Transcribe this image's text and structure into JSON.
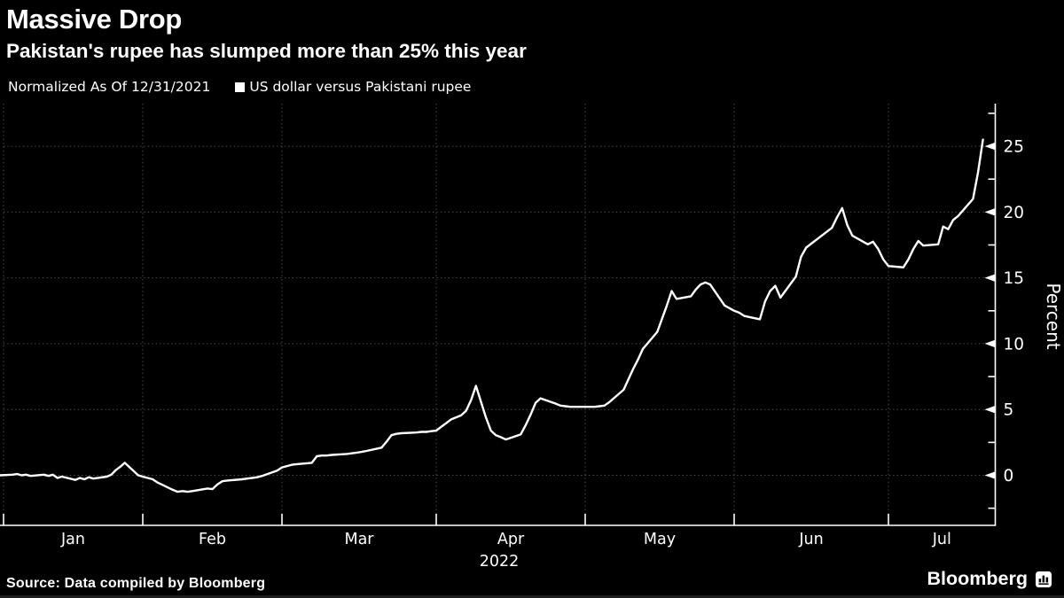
{
  "header": {
    "title": "Massive Drop",
    "subtitle": "Pakistan's rupee has slumped more than 25% this year"
  },
  "legend": {
    "note": "Normalized As Of 12/31/2021",
    "series_label": "US dollar versus Pakistani rupee"
  },
  "footer": {
    "source": "Source: Data compiled by Bloomberg",
    "brand": "Bloomberg"
  },
  "chart_data": {
    "type": "line",
    "title": "Massive Drop",
    "subtitle": "Pakistan's rupee has slumped more than 25% this year",
    "series_name": "US dollar versus Pakistani rupee",
    "normalized_as_of": "12/31/2021",
    "ylabel": "Percent",
    "year_label": "2022",
    "x_tick_labels": [
      "Jan",
      "Feb",
      "Mar",
      "Apr",
      "May",
      "Jun",
      "Jul"
    ],
    "y_ticks": [
      0,
      5,
      10,
      15,
      20,
      25
    ],
    "y_minor_ticks": [
      -2.5,
      2.5,
      7.5,
      12.5,
      17.5,
      22.5,
      27.5
    ],
    "ylim": [
      -3.7,
      28.3
    ],
    "grid": "dotted",
    "legend_position": "top-left",
    "colors": {
      "background": "#000000",
      "line": "#ffffff",
      "grid": "#4e4e4e",
      "text": "#ffffff"
    },
    "points": [
      [
        "12-31",
        0
      ],
      [
        "01-03",
        0.05
      ],
      [
        "01-04",
        0.1
      ],
      [
        "01-05",
        0
      ],
      [
        "01-06",
        0.05
      ],
      [
        "01-07",
        -0.05
      ],
      [
        "01-10",
        0.05
      ],
      [
        "01-11",
        -0.05
      ],
      [
        "01-12",
        0.05
      ],
      [
        "01-13",
        -0.2
      ],
      [
        "01-14",
        -0.1
      ],
      [
        "01-17",
        -0.35
      ],
      [
        "01-18",
        -0.2
      ],
      [
        "01-19",
        -0.3
      ],
      [
        "01-20",
        -0.15
      ],
      [
        "01-21",
        -0.25
      ],
      [
        "01-24",
        -0.1
      ],
      [
        "01-25",
        0.05
      ],
      [
        "01-26",
        0.4
      ],
      [
        "01-27",
        0.65
      ],
      [
        "01-28",
        0.95
      ],
      [
        "01-31",
        0
      ],
      [
        "02-01",
        -0.1
      ],
      [
        "02-02",
        -0.2
      ],
      [
        "02-03",
        -0.3
      ],
      [
        "02-04",
        -0.55
      ],
      [
        "02-07",
        -1.1
      ],
      [
        "02-08",
        -1.25
      ],
      [
        "02-09",
        -1.2
      ],
      [
        "02-10",
        -1.25
      ],
      [
        "02-11",
        -1.2
      ],
      [
        "02-14",
        -1
      ],
      [
        "02-15",
        -1.05
      ],
      [
        "02-16",
        -0.7
      ],
      [
        "02-17",
        -0.45
      ],
      [
        "02-18",
        -0.4
      ],
      [
        "02-21",
        -0.3
      ],
      [
        "02-22",
        -0.25
      ],
      [
        "02-23",
        -0.2
      ],
      [
        "02-24",
        -0.15
      ],
      [
        "02-25",
        -0.05
      ],
      [
        "02-28",
        0.35
      ],
      [
        "03-01",
        0.6
      ],
      [
        "03-02",
        0.7
      ],
      [
        "03-03",
        0.8
      ],
      [
        "03-04",
        0.85
      ],
      [
        "03-07",
        0.95
      ],
      [
        "03-08",
        1.45
      ],
      [
        "03-09",
        1.5
      ],
      [
        "03-10",
        1.5
      ],
      [
        "03-11",
        1.55
      ],
      [
        "03-14",
        1.62
      ],
      [
        "03-15",
        1.67
      ],
      [
        "03-16",
        1.72
      ],
      [
        "03-17",
        1.78
      ],
      [
        "03-18",
        1.85
      ],
      [
        "03-21",
        2.1
      ],
      [
        "03-22",
        2.55
      ],
      [
        "03-23",
        3.05
      ],
      [
        "03-24",
        3.15
      ],
      [
        "03-25",
        3.2
      ],
      [
        "03-28",
        3.25
      ],
      [
        "03-29",
        3.3
      ],
      [
        "03-30",
        3.3
      ],
      [
        "03-31",
        3.35
      ],
      [
        "04-01",
        3.4
      ],
      [
        "04-04",
        4.25
      ],
      [
        "04-05",
        4.4
      ],
      [
        "04-06",
        4.55
      ],
      [
        "04-07",
        4.9
      ],
      [
        "04-08",
        5.7
      ],
      [
        "04-09",
        6.8
      ],
      [
        "04-11",
        4.4
      ],
      [
        "04-12",
        3.4
      ],
      [
        "04-13",
        3.05
      ],
      [
        "04-14",
        2.9
      ],
      [
        "04-15",
        2.72
      ],
      [
        "04-18",
        3.1
      ],
      [
        "04-19",
        3.8
      ],
      [
        "04-20",
        4.6
      ],
      [
        "04-21",
        5.5
      ],
      [
        "04-22",
        5.85
      ],
      [
        "04-25",
        5.45
      ],
      [
        "04-26",
        5.3
      ],
      [
        "04-27",
        5.25
      ],
      [
        "04-28",
        5.2
      ],
      [
        "04-29",
        5.2
      ],
      [
        "05-02",
        5.2
      ],
      [
        "05-03",
        5.2
      ],
      [
        "05-04",
        5.25
      ],
      [
        "05-05",
        5.3
      ],
      [
        "05-06",
        5.55
      ],
      [
        "05-09",
        6.5
      ],
      [
        "05-10",
        7.3
      ],
      [
        "05-11",
        8.1
      ],
      [
        "05-12",
        8.8
      ],
      [
        "05-13",
        9.6
      ],
      [
        "05-16",
        10.9
      ],
      [
        "05-17",
        11.9
      ],
      [
        "05-18",
        12.9
      ],
      [
        "05-19",
        14
      ],
      [
        "05-20",
        13.4
      ],
      [
        "05-23",
        13.6
      ],
      [
        "05-24",
        14.1
      ],
      [
        "05-25",
        14.5
      ],
      [
        "05-26",
        14.65
      ],
      [
        "05-27",
        14.5
      ],
      [
        "05-30",
        12.9
      ],
      [
        "05-31",
        12.7
      ],
      [
        "06-01",
        12.5
      ],
      [
        "06-02",
        12.35
      ],
      [
        "06-03",
        12.1
      ],
      [
        "06-06",
        11.85
      ],
      [
        "06-07",
        13.2
      ],
      [
        "06-08",
        14
      ],
      [
        "06-09",
        14.4
      ],
      [
        "06-10",
        13.5
      ],
      [
        "06-13",
        15.1
      ],
      [
        "06-14",
        16.6
      ],
      [
        "06-15",
        17.3
      ],
      [
        "06-16",
        17.6
      ],
      [
        "06-17",
        17.9
      ],
      [
        "06-20",
        18.8
      ],
      [
        "06-21",
        19.6
      ],
      [
        "06-22",
        20.3
      ],
      [
        "06-23",
        19
      ],
      [
        "06-24",
        18.2
      ],
      [
        "06-27",
        17.55
      ],
      [
        "06-28",
        17.75
      ],
      [
        "06-29",
        17.2
      ],
      [
        "06-30",
        16.4
      ],
      [
        "07-01",
        15.9
      ],
      [
        "07-04",
        15.8
      ],
      [
        "07-05",
        16.4
      ],
      [
        "07-06",
        17.2
      ],
      [
        "07-07",
        17.8
      ],
      [
        "07-08",
        17.45
      ],
      [
        "07-11",
        17.55
      ],
      [
        "07-12",
        18.9
      ],
      [
        "07-13",
        18.7
      ],
      [
        "07-14",
        19.4
      ],
      [
        "07-15",
        19.7
      ],
      [
        "07-18",
        21
      ],
      [
        "07-19",
        23
      ],
      [
        "07-20",
        25.5
      ]
    ]
  }
}
